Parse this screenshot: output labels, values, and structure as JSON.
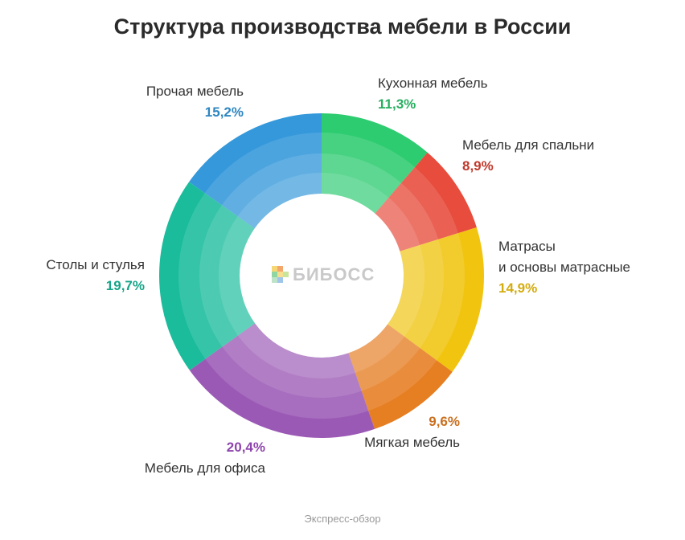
{
  "title": "Структура производства мебели в России",
  "footer": "Экспресс-обзор",
  "watermark": "БИБОСС",
  "chart_data": {
    "type": "pie",
    "variant": "donut",
    "title": "Структура производства мебели в России",
    "slices": [
      {
        "name": "Кухонная мебель",
        "value": 11.3,
        "label": "11,3%",
        "color": "#2ecc71",
        "label_color": "#27ae60"
      },
      {
        "name": "Мебель для спальни",
        "value": 8.9,
        "label": "8,9%",
        "color": "#e74c3c",
        "label_color": "#c0392b"
      },
      {
        "name": [
          "Матрасы",
          "и основы матрасные"
        ],
        "value": 14.9,
        "label": "14,9%",
        "color": "#f1c40f",
        "label_color": "#d4ac0d"
      },
      {
        "name": "Мягкая мебель",
        "value": 9.6,
        "label": "9,6%",
        "color": "#e67e22",
        "label_color": "#ca6f1e"
      },
      {
        "name": "Мебель для офиса",
        "value": 20.4,
        "label": "20,4%",
        "color": "#9b59b6",
        "label_color": "#8e44ad"
      },
      {
        "name": "Столы и стулья",
        "value": 19.7,
        "label": "19,7%",
        "color": "#1abc9c",
        "label_color": "#17a589"
      },
      {
        "name": "Прочая мебель",
        "value": 15.2,
        "label": "15,2%",
        "color": "#3498db",
        "label_color": "#2e86c1"
      }
    ]
  }
}
